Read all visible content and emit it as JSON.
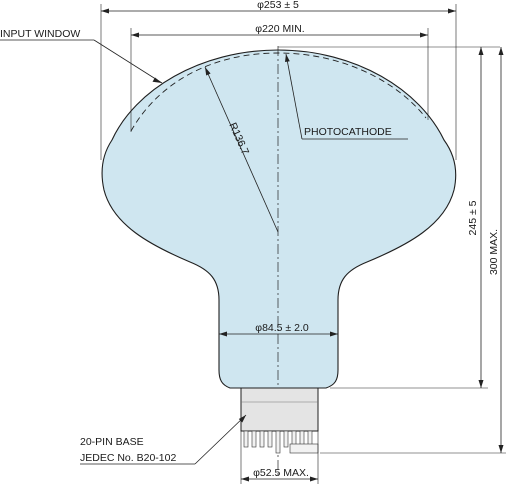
{
  "labels": {
    "input_window": "INPUT WINDOW",
    "photocathode": "PHOTOCATHODE",
    "radius": "R136.7",
    "dia_253": "φ253 ± 5",
    "dia_220": "φ220 MIN.",
    "dia_84": "φ84.5 ± 2.0",
    "dia_52": "φ52.5 MAX.",
    "height_245": "245 ± 5",
    "height_300": "300 MAX.",
    "base_line1": "20-PIN BASE",
    "base_line2": "JEDEC No. B20-102"
  },
  "colors": {
    "bulb_fill": "#cfe6f0",
    "outline": "#1f1f1f",
    "base_fill": "#e4e4e4",
    "pins_fill": "#f2f2f2"
  }
}
